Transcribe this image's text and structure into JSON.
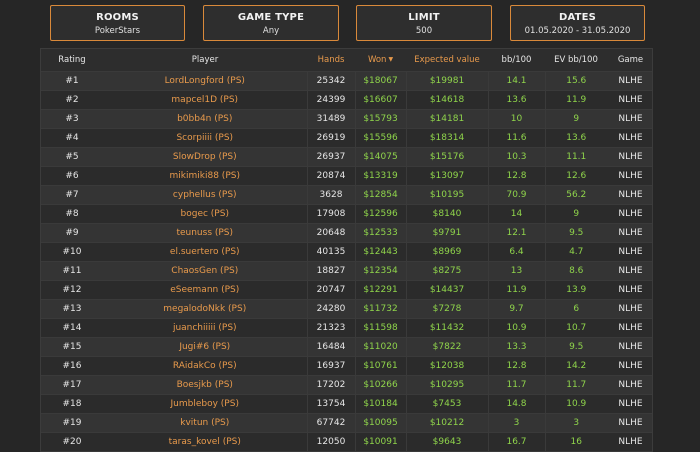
{
  "filters": {
    "rooms": {
      "title": "ROOMS",
      "value": "PokerStars"
    },
    "game_type": {
      "title": "GAME TYPE",
      "value": "Any"
    },
    "limit": {
      "title": "LIMIT",
      "value": "500"
    },
    "dates": {
      "title": "DATES",
      "value": "01.05.2020 - 31.05.2020"
    }
  },
  "table": {
    "headers": {
      "rating": "Rating",
      "player": "Player",
      "hands": "Hands",
      "won": "Won",
      "expected": "Expected value",
      "bb100": "bb/100",
      "ev_bb100": "EV bb/100",
      "game": "Game"
    },
    "sort_icon": "triangle-down-icon",
    "colors": {
      "orange": "#e89a4c",
      "green": "#8fd44b",
      "border": "#d9893a"
    },
    "rows": [
      {
        "rating": "#1",
        "player": "LordLongford (PS)",
        "hands": "25342",
        "won": "$18067",
        "expected": "$19981",
        "bb100": "14.1",
        "ev": "15.6",
        "game": "NLHE"
      },
      {
        "rating": "#2",
        "player": "mapcel1D (PS)",
        "hands": "24399",
        "won": "$16607",
        "expected": "$14618",
        "bb100": "13.6",
        "ev": "11.9",
        "game": "NLHE"
      },
      {
        "rating": "#3",
        "player": "b0bb4n (PS)",
        "hands": "31489",
        "won": "$15793",
        "expected": "$14181",
        "bb100": "10",
        "ev": "9",
        "game": "NLHE"
      },
      {
        "rating": "#4",
        "player": "Scorpiiii (PS)",
        "hands": "26919",
        "won": "$15596",
        "expected": "$18314",
        "bb100": "11.6",
        "ev": "13.6",
        "game": "NLHE"
      },
      {
        "rating": "#5",
        "player": "SlowDrop (PS)",
        "hands": "26937",
        "won": "$14075",
        "expected": "$15176",
        "bb100": "10.3",
        "ev": "11.1",
        "game": "NLHE"
      },
      {
        "rating": "#6",
        "player": "mikimiki88 (PS)",
        "hands": "20874",
        "won": "$13319",
        "expected": "$13097",
        "bb100": "12.8",
        "ev": "12.6",
        "game": "NLHE"
      },
      {
        "rating": "#7",
        "player": "cyphellus (PS)",
        "hands": "3628",
        "won": "$12854",
        "expected": "$10195",
        "bb100": "70.9",
        "ev": "56.2",
        "game": "NLHE"
      },
      {
        "rating": "#8",
        "player": "bogec (PS)",
        "hands": "17908",
        "won": "$12596",
        "expected": "$8140",
        "bb100": "14",
        "ev": "9",
        "game": "NLHE"
      },
      {
        "rating": "#9",
        "player": "teunuss (PS)",
        "hands": "20648",
        "won": "$12533",
        "expected": "$9791",
        "bb100": "12.1",
        "ev": "9.5",
        "game": "NLHE"
      },
      {
        "rating": "#10",
        "player": "el.suertero (PS)",
        "hands": "40135",
        "won": "$12443",
        "expected": "$8969",
        "bb100": "6.4",
        "ev": "4.7",
        "game": "NLHE"
      },
      {
        "rating": "#11",
        "player": "ChaosGen (PS)",
        "hands": "18827",
        "won": "$12354",
        "expected": "$8275",
        "bb100": "13",
        "ev": "8.6",
        "game": "NLHE"
      },
      {
        "rating": "#12",
        "player": "eSeemann (PS)",
        "hands": "20747",
        "won": "$12291",
        "expected": "$14437",
        "bb100": "11.9",
        "ev": "13.9",
        "game": "NLHE"
      },
      {
        "rating": "#13",
        "player": "megalodoNkk (PS)",
        "hands": "24280",
        "won": "$11732",
        "expected": "$7278",
        "bb100": "9.7",
        "ev": "6",
        "game": "NLHE"
      },
      {
        "rating": "#14",
        "player": "juanchiiiii (PS)",
        "hands": "21323",
        "won": "$11598",
        "expected": "$11432",
        "bb100": "10.9",
        "ev": "10.7",
        "game": "NLHE"
      },
      {
        "rating": "#15",
        "player": "Jugi#6 (PS)",
        "hands": "16484",
        "won": "$11020",
        "expected": "$7822",
        "bb100": "13.3",
        "ev": "9.5",
        "game": "NLHE"
      },
      {
        "rating": "#16",
        "player": "RAidakCo (PS)",
        "hands": "16937",
        "won": "$10761",
        "expected": "$12038",
        "bb100": "12.8",
        "ev": "14.2",
        "game": "NLHE"
      },
      {
        "rating": "#17",
        "player": "Boesjkb (PS)",
        "hands": "17202",
        "won": "$10266",
        "expected": "$10295",
        "bb100": "11.7",
        "ev": "11.7",
        "game": "NLHE"
      },
      {
        "rating": "#18",
        "player": "Jumbleboy (PS)",
        "hands": "13754",
        "won": "$10184",
        "expected": "$7453",
        "bb100": "14.8",
        "ev": "10.9",
        "game": "NLHE"
      },
      {
        "rating": "#19",
        "player": "kvitun (PS)",
        "hands": "67742",
        "won": "$10095",
        "expected": "$10212",
        "bb100": "3",
        "ev": "3",
        "game": "NLHE"
      },
      {
        "rating": "#20",
        "player": "taras_kovel (PS)",
        "hands": "12050",
        "won": "$10091",
        "expected": "$9643",
        "bb100": "16.7",
        "ev": "16",
        "game": "NLHE"
      }
    ]
  }
}
